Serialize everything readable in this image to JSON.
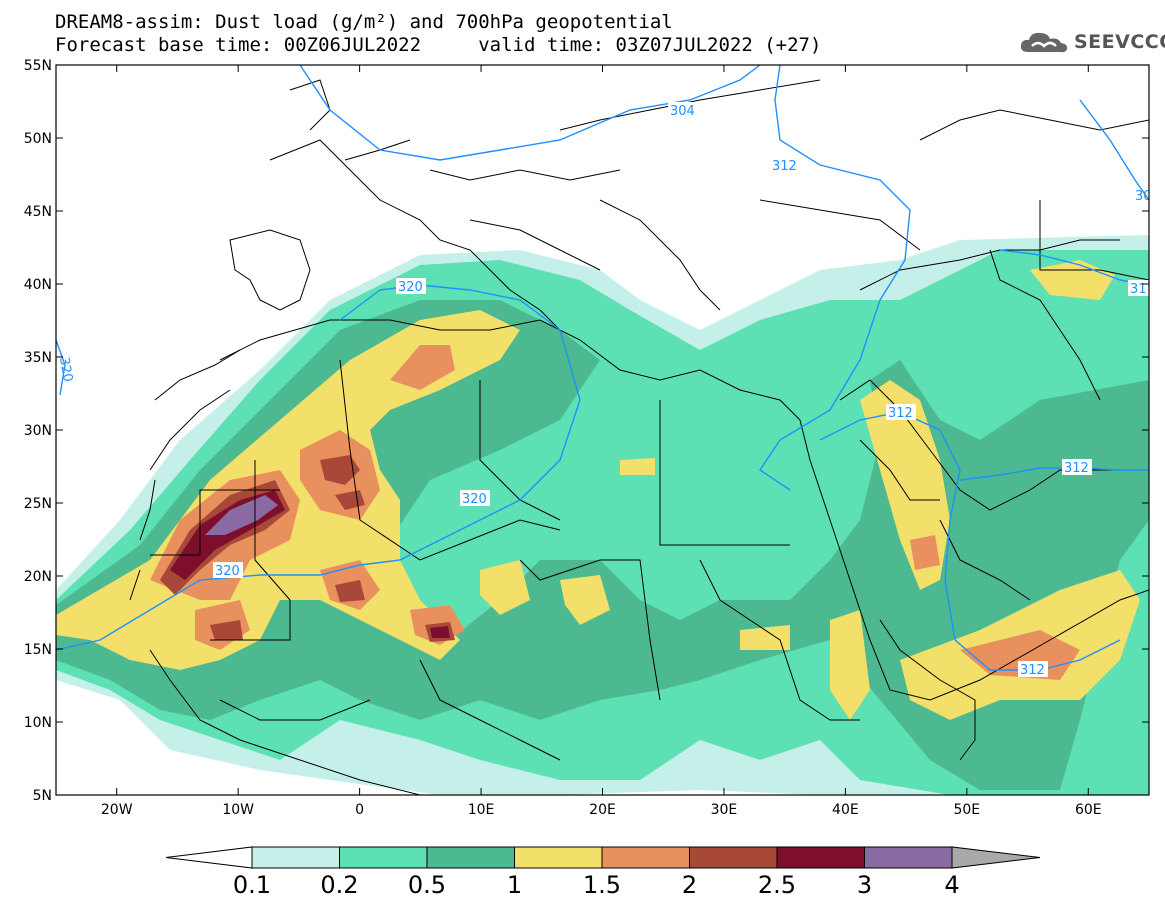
{
  "header": {
    "title_line1": "DREAM8-assim: Dust load (g/m²) and 700hPa geopotential",
    "title_line2": "Forecast base time: 00Z06JUL2022     valid time: 03Z07JUL2022 (+27)",
    "logo_text": "SEEVCCC",
    "logo_icon": "cloud-icon"
  },
  "map": {
    "lat_labels": [
      "55N",
      "50N",
      "45N",
      "40N",
      "35N",
      "30N",
      "25N",
      "20N",
      "15N",
      "10N",
      "5N"
    ],
    "lon_labels": [
      "20W",
      "10W",
      "0",
      "10E",
      "20E",
      "30E",
      "40E",
      "50E",
      "60E"
    ],
    "lat_range": [
      5,
      55
    ],
    "lon_range": [
      -25,
      65
    ],
    "contour_labels": [
      "304",
      "312",
      "320",
      "320",
      "320",
      "320",
      "312",
      "312",
      "312",
      "31",
      "30"
    ]
  },
  "colorbar": {
    "levels": [
      "0.1",
      "0.2",
      "0.5",
      "1",
      "1.5",
      "2",
      "2.5",
      "3",
      "4"
    ],
    "colors": [
      "#ffffff",
      "#c5f0ea",
      "#5ee0b5",
      "#4cb990",
      "#f3e06b",
      "#e8905e",
      "#a84838",
      "#7e0f2c",
      "#8a6aa3",
      "#a9a9a9"
    ]
  },
  "colors": {
    "c1": "#c5f0ea",
    "c2": "#5ee0b5",
    "c3": "#4cb990",
    "c4": "#f3e06b",
    "c5": "#e8905e",
    "c6": "#a84838",
    "c7": "#7e0f2c",
    "c8": "#8a6aa3",
    "contour": "#1e90ff"
  }
}
